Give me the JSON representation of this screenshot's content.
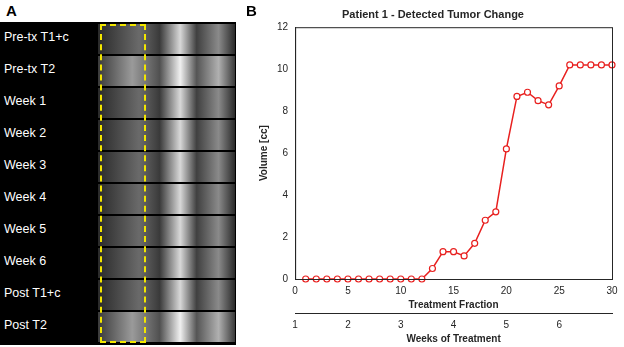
{
  "panels": {
    "A": {
      "label": "A",
      "rows": [
        "Pre-tx T1+c",
        "Pre-tx T2",
        "Week 1",
        "Week 2",
        "Week 3",
        "Week 4",
        "Week 5",
        "Week 6",
        "Post T1+c",
        "Post T2"
      ]
    }
  },
  "chart_data": {
    "type": "line",
    "panel_label": "B",
    "title": "Patient 1 - Detected Tumor Change",
    "xlabel": "Treatment Fraction",
    "ylabel": "Volume [cc]",
    "x": [
      1,
      2,
      3,
      4,
      5,
      6,
      7,
      8,
      9,
      10,
      11,
      12,
      13,
      14,
      15,
      16,
      17,
      18,
      19,
      20,
      21,
      22,
      23,
      24,
      25,
      26,
      27,
      28,
      29,
      30
    ],
    "values": [
      0,
      0,
      0,
      0,
      0,
      0,
      0,
      0,
      0,
      0,
      0,
      0,
      0.5,
      1.3,
      1.3,
      1.1,
      1.7,
      2.8,
      3.2,
      6.2,
      8.7,
      8.9,
      8.5,
      8.3,
      9.2,
      10.2,
      10.2,
      10.2,
      10.2,
      10.2
    ],
    "color": "#e8201f",
    "marker": "circle",
    "line_style": "solid",
    "xlim": [
      0,
      30
    ],
    "xticks": [
      0,
      5,
      10,
      15,
      20,
      25,
      30
    ],
    "ylim": [
      0,
      12
    ],
    "yticks": [
      0,
      2,
      4,
      6,
      8,
      10,
      12
    ],
    "x2label": "Weeks of Treatment",
    "x2lim": [
      1,
      7
    ],
    "x2ticks": [
      1,
      2,
      3,
      4,
      5,
      6
    ],
    "grid": false
  }
}
